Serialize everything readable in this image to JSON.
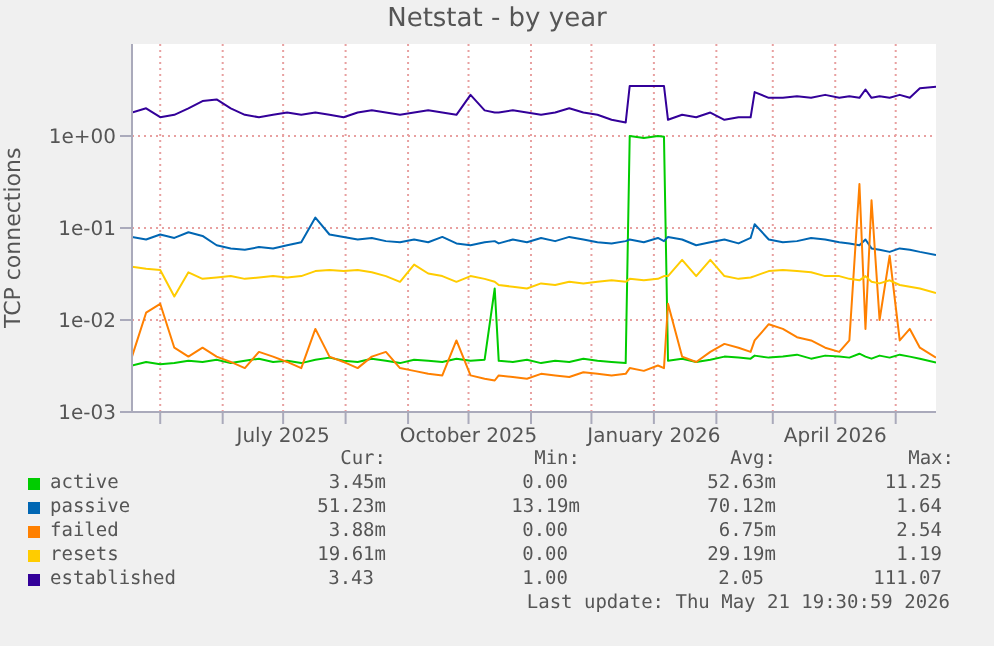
{
  "chart_data": {
    "type": "line",
    "title": "Netstat - by year",
    "ylabel": "TCP connections",
    "x": [
      "2025-04-17",
      "2025-04-24",
      "2025-05-01",
      "2025-05-08",
      "2025-05-15",
      "2025-05-22",
      "2025-05-29",
      "2025-06-05",
      "2025-06-12",
      "2025-06-19",
      "2025-06-26",
      "2025-07-03",
      "2025-07-10",
      "2025-07-17",
      "2025-07-24",
      "2025-07-31",
      "2025-08-07",
      "2025-08-14",
      "2025-08-21",
      "2025-08-28",
      "2025-09-04",
      "2025-09-11",
      "2025-09-18",
      "2025-09-25",
      "2025-10-02",
      "2025-10-09",
      "2025-10-14",
      "2025-10-16",
      "2025-10-23",
      "2025-10-30",
      "2025-11-06",
      "2025-11-13",
      "2025-11-20",
      "2025-11-27",
      "2025-12-04",
      "2025-12-11",
      "2025-12-18",
      "2025-12-20",
      "2025-12-27",
      "2026-01-03",
      "2026-01-06",
      "2026-01-08",
      "2026-01-15",
      "2026-01-22",
      "2026-01-29",
      "2026-02-05",
      "2026-02-12",
      "2026-02-18",
      "2026-02-20",
      "2026-02-27",
      "2026-03-06",
      "2026-03-13",
      "2026-03-20",
      "2026-03-27",
      "2026-04-03",
      "2026-04-08",
      "2026-04-13",
      "2026-04-16",
      "2026-04-19",
      "2026-04-23",
      "2026-04-28",
      "2026-05-03",
      "2026-05-08",
      "2026-05-13",
      "2026-05-21"
    ],
    "series": [
      {
        "name": "active",
        "color": "#00cc00",
        "values": [
          0.0032,
          0.0035,
          0.0033,
          0.0034,
          0.0036,
          0.0035,
          0.0037,
          0.0034,
          0.0036,
          0.0038,
          0.0035,
          0.0036,
          0.0034,
          0.0037,
          0.0039,
          0.0036,
          0.0035,
          0.0038,
          0.0036,
          0.0034,
          0.0037,
          0.0036,
          0.0035,
          0.0038,
          0.0036,
          0.0037,
          0.022,
          0.0036,
          0.0035,
          0.0037,
          0.0034,
          0.0036,
          0.0035,
          0.0038,
          0.0036,
          0.0035,
          0.0034,
          1.0,
          0.95,
          1.0,
          0.98,
          0.0036,
          0.0038,
          0.0035,
          0.0037,
          0.004,
          0.0039,
          0.0038,
          0.0041,
          0.0039,
          0.004,
          0.0042,
          0.0038,
          0.0041,
          0.004,
          0.0039,
          0.0043,
          0.004,
          0.0038,
          0.0041,
          0.0039,
          0.0042,
          0.004,
          0.0038,
          0.00345
        ]
      },
      {
        "name": "passive",
        "color": "#0066b3",
        "values": [
          0.08,
          0.075,
          0.085,
          0.078,
          0.09,
          0.082,
          0.065,
          0.06,
          0.058,
          0.062,
          0.06,
          0.065,
          0.07,
          0.13,
          0.085,
          0.08,
          0.075,
          0.078,
          0.072,
          0.07,
          0.075,
          0.07,
          0.08,
          0.068,
          0.065,
          0.07,
          0.072,
          0.068,
          0.075,
          0.07,
          0.078,
          0.072,
          0.08,
          0.075,
          0.07,
          0.068,
          0.072,
          0.075,
          0.07,
          0.078,
          0.072,
          0.08,
          0.075,
          0.065,
          0.07,
          0.075,
          0.068,
          0.078,
          0.11,
          0.075,
          0.07,
          0.072,
          0.078,
          0.075,
          0.07,
          0.068,
          0.065,
          0.075,
          0.06,
          0.058,
          0.055,
          0.06,
          0.058,
          0.055,
          0.051
        ]
      },
      {
        "name": "failed",
        "color": "#ff8000",
        "values": [
          0.004,
          0.012,
          0.015,
          0.005,
          0.004,
          0.005,
          0.004,
          0.0035,
          0.003,
          0.0045,
          0.004,
          0.0035,
          0.003,
          0.008,
          0.004,
          0.0035,
          0.003,
          0.004,
          0.0045,
          0.003,
          0.0028,
          0.0026,
          0.0025,
          0.006,
          0.0025,
          0.0023,
          0.0022,
          0.0025,
          0.0024,
          0.0023,
          0.0026,
          0.0025,
          0.0024,
          0.0027,
          0.0026,
          0.0025,
          0.0026,
          0.003,
          0.0028,
          0.0032,
          0.003,
          0.015,
          0.004,
          0.0035,
          0.0045,
          0.0055,
          0.005,
          0.0045,
          0.006,
          0.009,
          0.008,
          0.0065,
          0.006,
          0.005,
          0.0045,
          0.006,
          0.3,
          0.008,
          0.2,
          0.01,
          0.05,
          0.006,
          0.008,
          0.005,
          0.0039
        ]
      },
      {
        "name": "resets",
        "color": "#ffcc00",
        "values": [
          0.038,
          0.036,
          0.035,
          0.018,
          0.033,
          0.028,
          0.029,
          0.03,
          0.028,
          0.029,
          0.03,
          0.029,
          0.03,
          0.034,
          0.035,
          0.034,
          0.035,
          0.033,
          0.03,
          0.026,
          0.04,
          0.032,
          0.03,
          0.026,
          0.03,
          0.028,
          0.026,
          0.024,
          0.023,
          0.022,
          0.025,
          0.024,
          0.026,
          0.025,
          0.026,
          0.027,
          0.026,
          0.028,
          0.027,
          0.028,
          0.03,
          0.03,
          0.045,
          0.03,
          0.045,
          0.03,
          0.028,
          0.029,
          0.03,
          0.034,
          0.035,
          0.034,
          0.033,
          0.03,
          0.03,
          0.028,
          0.027,
          0.03,
          0.026,
          0.025,
          0.027,
          0.024,
          0.023,
          0.022,
          0.0196
        ]
      },
      {
        "name": "established",
        "color": "#330099",
        "values": [
          1.8,
          2.0,
          1.6,
          1.7,
          2.0,
          2.4,
          2.5,
          2.0,
          1.7,
          1.6,
          1.7,
          1.8,
          1.7,
          1.8,
          1.7,
          1.6,
          1.8,
          1.9,
          1.8,
          1.7,
          1.8,
          1.9,
          1.8,
          1.7,
          2.8,
          1.9,
          1.8,
          1.8,
          1.9,
          1.8,
          1.7,
          1.8,
          2.0,
          1.8,
          1.7,
          1.5,
          1.4,
          3.5,
          3.5,
          3.5,
          3.5,
          1.5,
          1.7,
          1.6,
          1.8,
          1.5,
          1.6,
          1.6,
          3.0,
          2.6,
          2.6,
          2.7,
          2.6,
          2.8,
          2.6,
          2.7,
          2.6,
          3.2,
          2.6,
          2.7,
          2.6,
          2.8,
          2.6,
          3.3,
          3.43
        ]
      }
    ],
    "log": "y",
    "xlim": [
      "2025-04-17",
      "2026-05-21"
    ],
    "xticks": [
      {
        "value": "2025-05-01",
        "label": null
      },
      {
        "value": "2025-06-01",
        "label": null
      },
      {
        "value": "2025-07-01",
        "label": "July 2025"
      },
      {
        "value": "2025-08-01",
        "label": null
      },
      {
        "value": "2025-09-01",
        "label": null
      },
      {
        "value": "2025-10-01",
        "label": "October 2025"
      },
      {
        "value": "2025-11-01",
        "label": null
      },
      {
        "value": "2025-12-01",
        "label": null
      },
      {
        "value": "2026-01-01",
        "label": "January 2026"
      },
      {
        "value": "2026-02-01",
        "label": null
      },
      {
        "value": "2026-03-01",
        "label": null
      },
      {
        "value": "2026-04-01",
        "label": "April 2026"
      },
      {
        "value": "2026-05-01",
        "label": null
      }
    ],
    "ylim": [
      0.001,
      10
    ],
    "yticks": [
      {
        "value": 0.001,
        "label": "1e-03"
      },
      {
        "value": 0.01,
        "label": "1e-02"
      },
      {
        "value": 0.1,
        "label": "1e-01"
      },
      {
        "value": 1,
        "label": "1e+00"
      }
    ],
    "grid": true,
    "legend": "bottom",
    "annotations": [
      "Cur:",
      "Min:",
      "Avg:",
      "Max:",
      "3.45m",
      "0.00",
      "52.63m",
      "11.25",
      "51.23m",
      "13.19m",
      "70.12m",
      "1.64",
      "3.88m",
      "0.00",
      "6.75m",
      "2.54",
      "19.61m",
      "0.00",
      "29.19m",
      "1.19",
      "3.43",
      "1.00",
      "2.05",
      "111.07",
      "Last update: Thu May 21 19:30:59 2026"
    ]
  }
}
